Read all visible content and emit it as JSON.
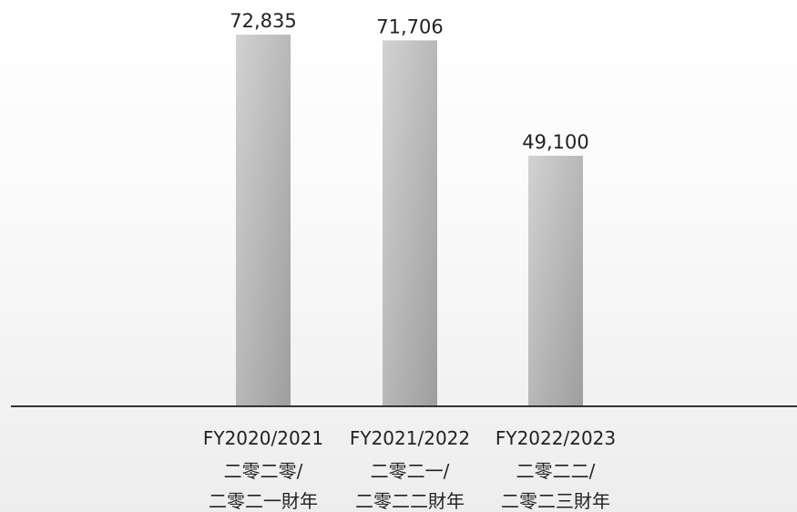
{
  "chart_data": {
    "type": "bar",
    "categories": [
      [
        "FY2020/2021",
        "二零二零/",
        "二零二一財年"
      ],
      [
        "FY2021/2022",
        "二零二一/",
        "二零二二財年"
      ],
      [
        "FY2022/2023",
        "二零二二/",
        "二零二三財年"
      ]
    ],
    "values": [
      72835,
      71706,
      49100
    ],
    "value_labels": [
      "72,835",
      "71,706",
      "49,100"
    ],
    "title": "",
    "xlabel": "",
    "ylabel": "",
    "ylim": [
      0,
      72835
    ],
    "grid": false,
    "legend": "none",
    "colors": {
      "bar_light": "#d2d2d2",
      "bar_dark": "#9e9e9e",
      "axis": "#333333",
      "text": "#222222"
    }
  }
}
